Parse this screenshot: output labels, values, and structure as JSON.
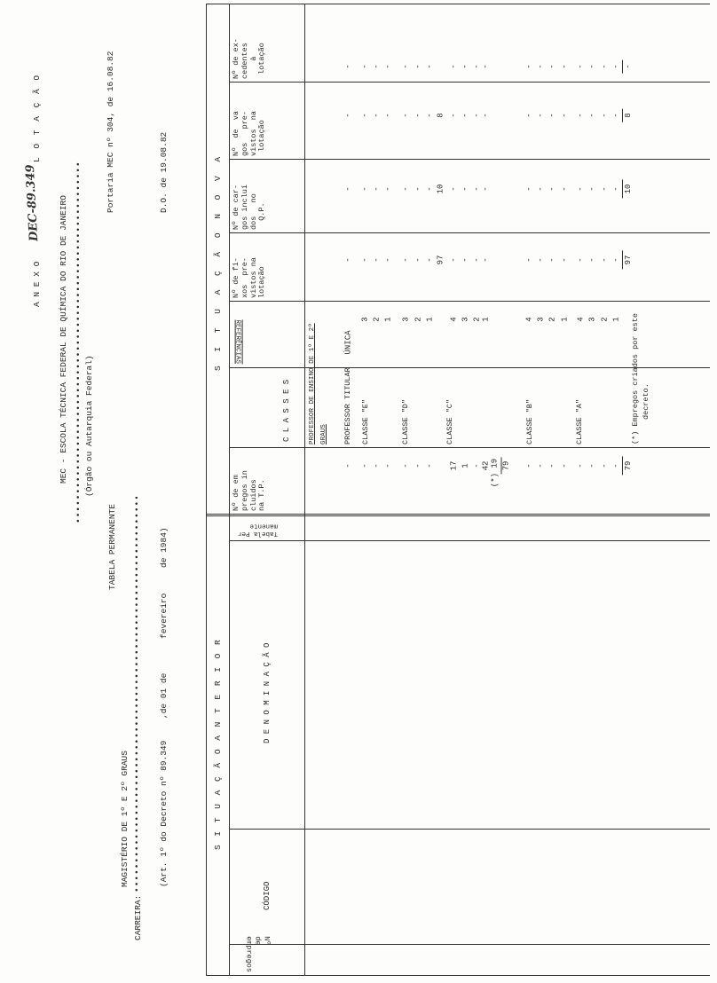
{
  "header": {
    "annex": "A N E X O",
    "handwritten_ref": "DEC-89.349",
    "lotacao": "L O T A Ç Ã O",
    "organ": "MEC - ESCOLA TÉCNICA FEDERAL DE QUÍMICA DO RIO DE JANEIRO",
    "organ_caption": "(Órgão ou Autarquia Federal)",
    "portaria": "Portaria MEC nº 304, de 16.08.82",
    "table_title": "TABELA  PERMANENTE",
    "career_value": "MAGISTÉRIO DE 1º E 2º GRAUS",
    "career_label": "CARREIRA:",
    "do_date": "D.O. de 19.08.82",
    "decree_part1": "(Art. 1º do Decreto nº 89.349",
    "decree_part2": ",de 01 de",
    "decree_part3": "fevereiro",
    "decree_part4": "de 1984)"
  },
  "table": {
    "section_previous": "S I T U A Ç Ã O   A N T E R I O R",
    "section_new": "S I T U A Ç Ã O   N O V A",
    "columns": {
      "num_jobs": "Nº\nde\nempregos",
      "code": "CÓDIGO",
      "denomination": "D E N O M I N A Ç Ã O",
      "permanent_table": "Tabela Per\nmanente",
      "jobs_included_tp": "Nº de em\npregos in\ncluidos\nna T.P.",
      "classes": "C L A S S E S",
      "references": "REFERÊNCIAS",
      "fixed_planned": "Nº de fi-\nxos  pre-\nvistos na\nlotação",
      "posts_included_qp": "Nº de car-\ngos incluí\ndos   no\n  Q.P.",
      "vacant_planned": "Nº  de  va\ngos   pre-\nvistos  na\n lotação",
      "excess": "Nº de ex-\ncedentes\n    à\n lotação"
    },
    "group_title_line1": "PROFESSOR DE ENSINO DE 1º E 2º",
    "group_title_line2": "GRAUS",
    "class_labels": [
      "PROFESSOR TITULAR",
      "CLASSE \"E\"",
      "CLASSE \"D\"",
      "CLASSE \"C\"",
      "CLASSE \"B\"",
      "CLASSE \"A\""
    ],
    "rows": [
      {
        "ref": "ÚNICA",
        "tp": "-",
        "fixos": "-",
        "cargos": "-",
        "vagos": "-",
        "exc": "-"
      },
      {
        "ref": "3",
        "tp": "-",
        "fixos": "-",
        "cargos": "-",
        "vagos": "-",
        "exc": "-"
      },
      {
        "ref": "2",
        "tp": "-",
        "fixos": "-",
        "cargos": "-",
        "vagos": "-",
        "exc": "-"
      },
      {
        "ref": "1",
        "tp": "-",
        "fixos": "-",
        "cargos": "-",
        "vagos": "-",
        "exc": "-"
      },
      {
        "ref": "3",
        "tp": "-",
        "fixos": "-",
        "cargos": "-",
        "vagos": "-",
        "exc": "-"
      },
      {
        "ref": "2",
        "tp": "-",
        "fixos": "-",
        "cargos": "-",
        "vagos": "-",
        "exc": "-"
      },
      {
        "ref": "1",
        "tp": "-",
        "fixos": "-",
        "cargos": "-",
        "vagos": "-",
        "exc": "-"
      },
      {
        "ref": "",
        "tp": "",
        "fixos": "97",
        "cargos": "10",
        "vagos": "8",
        "exc": ""
      },
      {
        "ref": "4",
        "tp": "17",
        "fixos": "-",
        "cargos": "-",
        "vagos": "-",
        "exc": "-"
      },
      {
        "ref": "3",
        "tp": "1",
        "fixos": "-",
        "cargos": "-",
        "vagos": "-",
        "exc": "-"
      },
      {
        "ref": "2",
        "tp": "-",
        "fixos": "-",
        "cargos": "-",
        "vagos": "-",
        "exc": "-"
      },
      {
        "ref": "1",
        "tp": "42",
        "fixos": "-",
        "cargos": "-",
        "vagos": "-",
        "exc": "-"
      },
      {
        "ref": "",
        "tp": "(*) 19",
        "fixos": "",
        "cargos": "",
        "vagos": "",
        "exc": ""
      },
      {
        "ref": "",
        "tp": "79",
        "fixos": "",
        "cargos": "",
        "vagos": "",
        "exc": "",
        "subtotal": true
      },
      {
        "ref": "4",
        "tp": "-",
        "fixos": "-",
        "cargos": "-",
        "vagos": "-",
        "exc": "-"
      },
      {
        "ref": "3",
        "tp": "-",
        "fixos": "-",
        "cargos": "-",
        "vagos": "-",
        "exc": "-"
      },
      {
        "ref": "2",
        "tp": "-",
        "fixos": "-",
        "cargos": "-",
        "vagos": "-",
        "exc": "-"
      },
      {
        "ref": "1",
        "tp": "-",
        "fixos": "-",
        "cargos": "-",
        "vagos": "-",
        "exc": "-"
      },
      {
        "ref": "4",
        "tp": "-",
        "fixos": "-",
        "cargos": "-",
        "vagos": "-",
        "exc": "-"
      },
      {
        "ref": "3",
        "tp": "-",
        "fixos": "-",
        "cargos": "-",
        "vagos": "-",
        "exc": "-"
      },
      {
        "ref": "2",
        "tp": "-",
        "fixos": "-",
        "cargos": "-",
        "vagos": "-",
        "exc": "-"
      },
      {
        "ref": "1",
        "tp": "-",
        "fixos": "-",
        "cargos": "-",
        "vagos": "-",
        "exc": "-"
      }
    ],
    "totals": {
      "tp": "79",
      "fixos": "97",
      "cargos": "10",
      "vagos": "8",
      "exc": "-"
    },
    "footnote_line1": "(*) Empregos criados por este",
    "footnote_line2": "decreto."
  }
}
